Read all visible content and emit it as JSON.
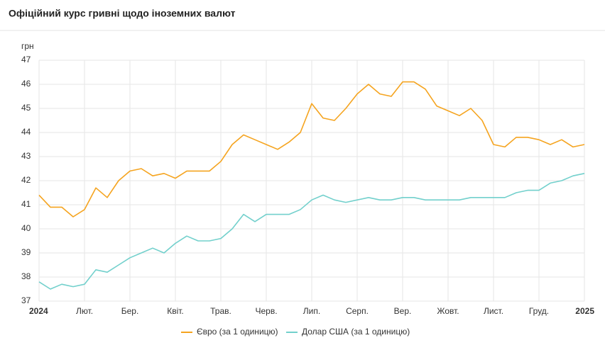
{
  "chart_data": {
    "type": "line",
    "title": "Офіційний курс гривні щодо іноземних валют",
    "y_label": "грн",
    "categories": [
      "2024",
      null,
      null,
      null,
      "Лют.",
      null,
      null,
      null,
      "Бер.",
      null,
      null,
      null,
      "Квіт.",
      null,
      null,
      null,
      "Трав.",
      null,
      null,
      null,
      "Черв.",
      null,
      null,
      null,
      "Лип.",
      null,
      null,
      null,
      "Серп.",
      null,
      null,
      null,
      "Вер.",
      null,
      null,
      null,
      "Жовт.",
      null,
      null,
      null,
      "Лист.",
      null,
      null,
      null,
      "Груд.",
      null,
      null,
      null,
      "2025"
    ],
    "series": [
      {
        "name": "Євро (за 1 одиницю)",
        "color": "#f5a41f",
        "values": [
          41.4,
          40.9,
          40.9,
          40.5,
          40.8,
          41.7,
          41.3,
          42.0,
          42.4,
          42.5,
          42.2,
          42.3,
          42.1,
          42.4,
          42.4,
          42.4,
          42.8,
          43.5,
          43.9,
          43.7,
          43.5,
          43.3,
          43.6,
          44.0,
          45.2,
          44.6,
          44.5,
          45.0,
          45.6,
          46.0,
          45.6,
          45.5,
          46.1,
          46.1,
          45.8,
          45.1,
          44.9,
          44.7,
          45.0,
          44.5,
          43.5,
          43.4,
          43.8,
          43.8,
          43.7,
          43.5,
          43.7,
          43.4,
          43.5
        ]
      },
      {
        "name": "Долар США (за 1 одиницю)",
        "color": "#72d0cc",
        "values": [
          37.8,
          37.5,
          37.7,
          37.6,
          37.7,
          38.3,
          38.2,
          38.5,
          38.8,
          39.0,
          39.2,
          39.0,
          39.4,
          39.7,
          39.5,
          39.5,
          39.6,
          40.0,
          40.6,
          40.3,
          40.6,
          40.6,
          40.6,
          40.8,
          41.2,
          41.4,
          41.2,
          41.1,
          41.2,
          41.3,
          41.2,
          41.2,
          41.3,
          41.3,
          41.2,
          41.2,
          41.2,
          41.2,
          41.3,
          41.3,
          41.3,
          41.3,
          41.5,
          41.6,
          41.6,
          41.9,
          42.0,
          42.2,
          42.3
        ]
      }
    ],
    "ylim": [
      37,
      47
    ],
    "yticks": [
      37,
      38,
      39,
      40,
      41,
      42,
      43,
      44,
      45,
      46,
      47
    ],
    "grid": true,
    "legend": "bottom"
  }
}
